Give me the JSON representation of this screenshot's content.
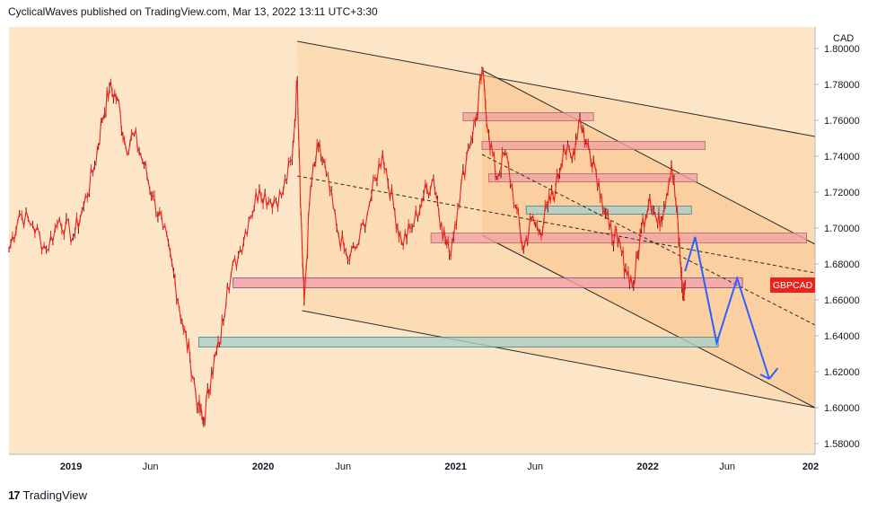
{
  "header": {
    "author_line": "CyclicalWaves published on TradingView.com, Mar 13, 2022 13:11 UTC+3:30"
  },
  "footer": {
    "brand": "TradingView",
    "logo_glyph": "17"
  },
  "colors": {
    "plot_bg": "#fde6c8",
    "channel_fill": "#fbd3a6",
    "candle": "#e8231c",
    "projection": "#2962ff",
    "price_label_bg": "#e8231c"
  },
  "chart_data": {
    "type": "line",
    "symbol": "GBPCAD",
    "currency": "CAD",
    "current_price": 1.6685,
    "x_ticks": [
      "2019",
      "Jun",
      "2020",
      "Jun",
      "2021",
      "Jun",
      "2022",
      "Jun",
      "202"
    ],
    "y_ticks": [
      "1.80000",
      "1.78000",
      "1.76000",
      "1.74000",
      "1.72000",
      "1.70000",
      "1.68000",
      "1.66000",
      "1.64000",
      "1.62000",
      "1.60000",
      "1.58000"
    ],
    "ylim": [
      1.574,
      1.812
    ],
    "xlim": [
      "2018-09-05",
      "2022-11-15"
    ],
    "grid": false,
    "price": [
      {
        "x": "2018-09-05",
        "y": 1.688
      },
      {
        "x": "2018-09-25",
        "y": 1.708
      },
      {
        "x": "2018-10-20",
        "y": 1.702
      },
      {
        "x": "2018-11-15",
        "y": 1.688
      },
      {
        "x": "2018-12-10",
        "y": 1.705
      },
      {
        "x": "2019-01-05",
        "y": 1.695
      },
      {
        "x": "2019-01-25",
        "y": 1.712
      },
      {
        "x": "2019-02-15",
        "y": 1.735
      },
      {
        "x": "2019-03-01",
        "y": 1.76
      },
      {
        "x": "2019-03-15",
        "y": 1.778
      },
      {
        "x": "2019-03-30",
        "y": 1.772
      },
      {
        "x": "2019-04-15",
        "y": 1.745
      },
      {
        "x": "2019-05-01",
        "y": 1.752
      },
      {
        "x": "2019-05-20",
        "y": 1.735
      },
      {
        "x": "2019-06-05",
        "y": 1.718
      },
      {
        "x": "2019-06-25",
        "y": 1.7
      },
      {
        "x": "2019-07-15",
        "y": 1.675
      },
      {
        "x": "2019-07-31",
        "y": 1.648
      },
      {
        "x": "2019-08-15",
        "y": 1.628
      },
      {
        "x": "2019-08-31",
        "y": 1.6
      },
      {
        "x": "2019-09-10",
        "y": 1.592
      },
      {
        "x": "2019-09-25",
        "y": 1.62
      },
      {
        "x": "2019-10-10",
        "y": 1.635
      },
      {
        "x": "2019-10-25",
        "y": 1.668
      },
      {
        "x": "2019-11-15",
        "y": 1.685
      },
      {
        "x": "2019-12-05",
        "y": 1.705
      },
      {
        "x": "2019-12-25",
        "y": 1.722
      },
      {
        "x": "2020-01-15",
        "y": 1.715
      },
      {
        "x": "2020-02-05",
        "y": 1.718
      },
      {
        "x": "2020-02-25",
        "y": 1.738
      },
      {
        "x": "2020-03-06",
        "y": 1.782
      },
      {
        "x": "2020-03-13",
        "y": 1.708
      },
      {
        "x": "2020-03-19",
        "y": 1.658
      },
      {
        "x": "2020-03-31",
        "y": 1.722
      },
      {
        "x": "2020-04-15",
        "y": 1.745
      },
      {
        "x": "2020-04-30",
        "y": 1.73
      },
      {
        "x": "2020-05-20",
        "y": 1.7
      },
      {
        "x": "2020-06-10",
        "y": 1.682
      },
      {
        "x": "2020-07-01",
        "y": 1.692
      },
      {
        "x": "2020-07-25",
        "y": 1.718
      },
      {
        "x": "2020-08-15",
        "y": 1.742
      },
      {
        "x": "2020-09-05",
        "y": 1.712
      },
      {
        "x": "2020-09-20",
        "y": 1.692
      },
      {
        "x": "2020-10-10",
        "y": 1.7
      },
      {
        "x": "2020-11-01",
        "y": 1.718
      },
      {
        "x": "2020-11-20",
        "y": 1.728
      },
      {
        "x": "2020-12-05",
        "y": 1.702
      },
      {
        "x": "2020-12-20",
        "y": 1.685
      },
      {
        "x": "2021-01-05",
        "y": 1.712
      },
      {
        "x": "2021-01-25",
        "y": 1.745
      },
      {
        "x": "2021-02-10",
        "y": 1.762
      },
      {
        "x": "2021-02-20",
        "y": 1.788
      },
      {
        "x": "2021-03-05",
        "y": 1.752
      },
      {
        "x": "2021-03-20",
        "y": 1.728
      },
      {
        "x": "2021-04-05",
        "y": 1.742
      },
      {
        "x": "2021-04-25",
        "y": 1.712
      },
      {
        "x": "2021-05-10",
        "y": 1.688
      },
      {
        "x": "2021-05-25",
        "y": 1.705
      },
      {
        "x": "2021-06-10",
        "y": 1.698
      },
      {
        "x": "2021-06-25",
        "y": 1.712
      },
      {
        "x": "2021-07-10",
        "y": 1.722
      },
      {
        "x": "2021-07-25",
        "y": 1.745
      },
      {
        "x": "2021-08-10",
        "y": 1.738
      },
      {
        "x": "2021-08-25",
        "y": 1.762
      },
      {
        "x": "2021-09-05",
        "y": 1.748
      },
      {
        "x": "2021-09-20",
        "y": 1.738
      },
      {
        "x": "2021-10-05",
        "y": 1.718
      },
      {
        "x": "2021-10-20",
        "y": 1.7
      },
      {
        "x": "2021-11-05",
        "y": 1.692
      },
      {
        "x": "2021-11-20",
        "y": 1.678
      },
      {
        "x": "2021-12-05",
        "y": 1.668
      },
      {
        "x": "2021-12-20",
        "y": 1.7
      },
      {
        "x": "2022-01-05",
        "y": 1.718
      },
      {
        "x": "2022-01-20",
        "y": 1.702
      },
      {
        "x": "2022-02-01",
        "y": 1.712
      },
      {
        "x": "2022-02-15",
        "y": 1.736
      },
      {
        "x": "2022-02-25",
        "y": 1.71
      },
      {
        "x": "2022-03-05",
        "y": 1.678
      },
      {
        "x": "2022-03-09",
        "y": 1.662
      },
      {
        "x": "2022-03-13",
        "y": 1.6685
      }
    ],
    "projection": [
      {
        "x": "2022-03-13",
        "y": 1.676
      },
      {
        "x": "2022-04-01",
        "y": 1.695
      },
      {
        "x": "2022-05-12",
        "y": 1.636
      },
      {
        "x": "2022-06-20",
        "y": 1.672
      },
      {
        "x": "2022-08-20",
        "y": 1.616
      },
      {
        "x": "2022-09-05",
        "y": 1.622
      }
    ],
    "channel": {
      "upper": [
        {
          "x": "2020-03-06",
          "y": 1.804
        },
        {
          "x": "2022-11-15",
          "y": 1.751
        }
      ],
      "lower": [
        {
          "x": "2020-03-15",
          "y": 1.654
        },
        {
          "x": "2022-11-15",
          "y": 1.6
        }
      ],
      "fill_right": [
        {
          "x": "2022-11-15",
          "y": 1.751
        },
        {
          "x": "2022-11-15",
          "y": 1.6
        }
      ]
    },
    "inner_channel": {
      "upper": [
        {
          "x": "2021-02-20",
          "y": 1.788
        },
        {
          "x": "2022-11-15",
          "y": 1.691
        }
      ],
      "lower": [
        {
          "x": "2021-02-20",
          "y": 1.696
        },
        {
          "x": "2022-11-15",
          "y": 1.6
        }
      ],
      "fill_right": [
        {
          "x": "2022-11-15",
          "y": 1.691
        },
        {
          "x": "2022-11-15",
          "y": 1.6
        }
      ]
    },
    "dashed_lines": [
      {
        "from": {
          "x": "2020-03-06",
          "y": 1.729
        },
        "to": {
          "x": "2022-11-15",
          "y": 1.675
        }
      },
      {
        "from": {
          "x": "2021-02-20",
          "y": 1.741
        },
        "to": {
          "x": "2022-11-15",
          "y": 1.646
        }
      }
    ],
    "zones": [
      {
        "from": "2021-01-15",
        "to": "2021-09-20",
        "y1": 1.761,
        "y2": 1.763,
        "kind": "resistance"
      },
      {
        "from": "2021-02-20",
        "to": "2022-04-20",
        "y1": 1.745,
        "y2": 1.747,
        "kind": "resistance"
      },
      {
        "from": "2021-03-05",
        "to": "2022-04-05",
        "y1": 1.727,
        "y2": 1.729,
        "kind": "resistance"
      },
      {
        "from": "2021-05-15",
        "to": "2022-03-25",
        "y1": 1.709,
        "y2": 1.711,
        "kind": "support"
      },
      {
        "from": "2020-11-15",
        "to": "2022-10-30",
        "y1": 1.693,
        "y2": 1.696,
        "kind": "resistance"
      },
      {
        "from": "2019-11-05",
        "to": "2022-06-30",
        "y1": 1.668,
        "y2": 1.671,
        "kind": "mixed"
      },
      {
        "from": "2019-09-01",
        "to": "2022-05-15",
        "y1": 1.635,
        "y2": 1.638,
        "kind": "support"
      }
    ]
  }
}
